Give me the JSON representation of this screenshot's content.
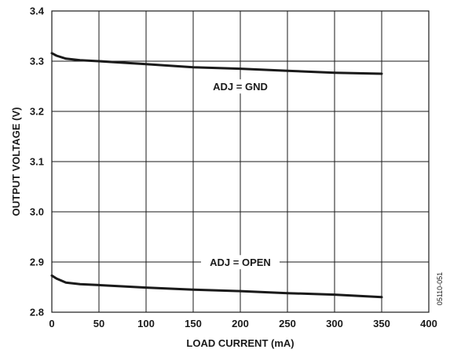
{
  "chart_data": {
    "type": "line",
    "title": "",
    "xlabel": "LOAD CURRENT (mA)",
    "ylabel": "OUTPUT VOLTAGE (V)",
    "xlim": [
      0,
      400
    ],
    "ylim": [
      2.8,
      3.4
    ],
    "x_ticks": [
      0,
      50,
      100,
      150,
      200,
      250,
      300,
      350,
      400
    ],
    "y_ticks": [
      2.8,
      2.9,
      3.0,
      3.1,
      3.2,
      3.3,
      3.4
    ],
    "x_tick_labels": [
      "0",
      "50",
      "100",
      "150",
      "200",
      "250",
      "300",
      "350",
      "400"
    ],
    "y_tick_labels": [
      "2.8",
      "2.9",
      "3.0",
      "3.1",
      "3.2",
      "3.3",
      "3.4"
    ],
    "grid": true,
    "series": [
      {
        "x": [
          0,
          5,
          15,
          30,
          50,
          100,
          150,
          200,
          250,
          300,
          350
        ],
        "y": [
          3.316,
          3.311,
          3.305,
          3.302,
          3.3,
          3.294,
          3.288,
          3.285,
          3.281,
          3.277,
          3.275
        ]
      },
      {
        "x": [
          0,
          5,
          15,
          30,
          50,
          100,
          150,
          200,
          250,
          300,
          350
        ],
        "y": [
          2.873,
          2.867,
          2.859,
          2.856,
          2.854,
          2.849,
          2.845,
          2.842,
          2.838,
          2.835,
          2.83
        ]
      }
    ],
    "annotations": [
      {
        "text": "ADJ = GND",
        "x": 200,
        "y": 3.245
      },
      {
        "text": "ADJ = OPEN",
        "x": 200,
        "y": 2.895
      }
    ],
    "figure_id": "05110-051"
  }
}
